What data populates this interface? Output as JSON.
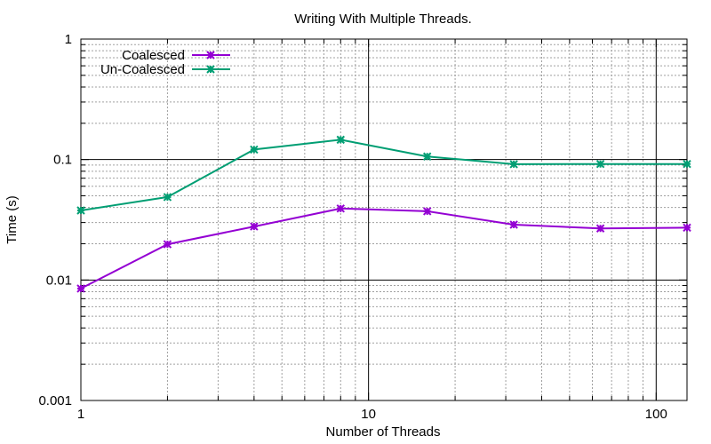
{
  "chart_data": {
    "type": "line",
    "title": "Writing With Multiple Threads.",
    "xlabel": "Number of Threads",
    "ylabel": "Time (s)",
    "xscale": "log",
    "yscale": "log",
    "xlim": [
      1,
      128
    ],
    "ylim": [
      0.001,
      1
    ],
    "xticks": [
      {
        "value": 1,
        "label": "1"
      },
      {
        "value": 10,
        "label": "10"
      },
      {
        "value": 100,
        "label": "100"
      }
    ],
    "yticks": [
      {
        "value": 0.001,
        "label": "0.001"
      },
      {
        "value": 0.01,
        "label": "0.01"
      },
      {
        "value": 0.1,
        "label": "0.1"
      },
      {
        "value": 1,
        "label": "1"
      }
    ],
    "grid": true,
    "legend_position": "top-left",
    "x": [
      1,
      2,
      4,
      8,
      16,
      32,
      64,
      128
    ],
    "series": [
      {
        "name": "Coalesced",
        "color": "#9400d3",
        "marker": "star",
        "values": [
          0.0085,
          0.0198,
          0.0278,
          0.0392,
          0.0372,
          0.0288,
          0.0268,
          0.0272
        ]
      },
      {
        "name": "Un-Coalesced",
        "color": "#009e73",
        "marker": "star",
        "values": [
          0.0378,
          0.0488,
          0.121,
          0.146,
          0.106,
          0.0915,
          0.0918,
          0.0918
        ]
      }
    ]
  }
}
